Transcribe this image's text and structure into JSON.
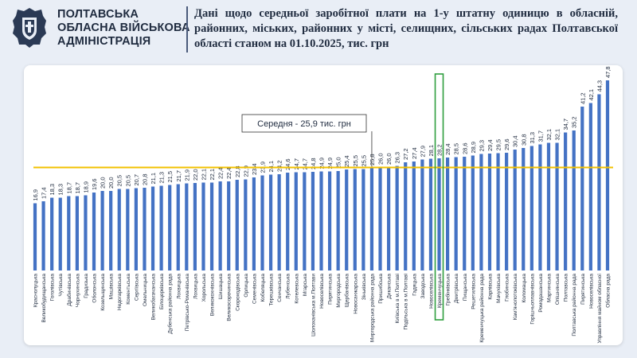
{
  "header": {
    "org_lines": [
      "ПОЛТАВСЬКА",
      "ОБЛАСНА ВІЙСЬКОВА",
      "АДМІНІСТРАЦІЯ"
    ],
    "logo_icon": "coat-of-arms-icon",
    "title": "Дані щодо середньої заробітної плати на 1-у штатну одиницю в обласній, районних, міських, районних у місті, селищних, сільських радах Полтавської області станом на 01.10.2025, тис. грн"
  },
  "colors": {
    "bar": "#4472c4",
    "average_line": "#f2c200",
    "highlight_box": "#2e9e3e",
    "header_text": "#1f2b3f"
  },
  "chart_data": {
    "type": "bar",
    "categories": [
      "Краснолуцька",
      "Великобудищанська",
      "Гоголівська",
      "Чутівська",
      "Драбинівська",
      "Чорнухинська",
      "Градизька",
      "Оболонська",
      "Козельщинська",
      "Машівська",
      "Недогарківська",
      "Коментьська",
      "Сергіївська",
      "Омельницька",
      "Великобагачанська",
      "Білоцерківська",
      "Дубенська районна рада",
      "Лохвицька",
      "Петрівсько-Романівська",
      "Лохвицька",
      "Хорольська",
      "Великокохнівська",
      "Шишацька",
      "Великосорочинська",
      "Скороходівська",
      "Орлицька",
      "Семенівська",
      "Кобеляцька",
      "Терешківська",
      "Сенчанська",
      "Лубенська",
      "Котелевська",
      "Мгарська",
      "Шолоханівська м.Полтави",
      "Новоселівська",
      "Пирятинська",
      "Миргородська",
      "Щербанівська",
      "Новосанжарська",
      "Зіньківська",
      "Миргородська районна рада",
      "Пришибська",
      "Диканська",
      "Київська в м.Полтаві",
      "Подільська в м.Полтаві",
      "Гадяцька",
      "Заводська",
      "Новоселівська",
      "Кременчуцька",
      "Гребінківська",
      "Дмитрівська",
      "Пищанська",
      "Решетилівська",
      "Кременчуцька районна рада",
      "Карлівська",
      "Мачухівська",
      "Глобинська",
      "Кам'янопотоківська",
      "Коломацька",
      "Горішньоплавнівська",
      "Ромодашанська",
      "Мартинська",
      "Опішнянська",
      "Полтавська",
      "Полтавська районна рада",
      "Пирятинська",
      "Новоселівська",
      "Управління майном обласної",
      "Обласна рада"
    ],
    "values": [
      16.9,
      17.4,
      18.3,
      18.3,
      18.7,
      18.7,
      18.9,
      19.6,
      20.0,
      20.0,
      20.5,
      20.5,
      20.7,
      20.8,
      21.1,
      21.3,
      21.5,
      21.7,
      21.9,
      22.0,
      22.1,
      22.1,
      22.4,
      22.4,
      22.8,
      22.9,
      23.4,
      23.9,
      24.1,
      24.2,
      24.6,
      24.7,
      24.7,
      24.8,
      24.9,
      24.9,
      25.0,
      25.4,
      25.5,
      25.5,
      25.8,
      26.0,
      26.0,
      26.3,
      27.2,
      27.4,
      27.9,
      28.1,
      28.2,
      28.4,
      28.5,
      28.6,
      28.9,
      29.3,
      29.4,
      29.5,
      29.6,
      30.4,
      30.8,
      31.3,
      31.7,
      32.1,
      32.1,
      34.7,
      35.2,
      41.2,
      42.1,
      44.3,
      47.8
    ],
    "average": 25.9,
    "average_label": "Середня - 25,9 тис. грн",
    "highlight_category": "Кременчуцька",
    "ylim": [
      0,
      50
    ],
    "xlabel": "",
    "ylabel": "",
    "grid": false,
    "legend": "none"
  }
}
